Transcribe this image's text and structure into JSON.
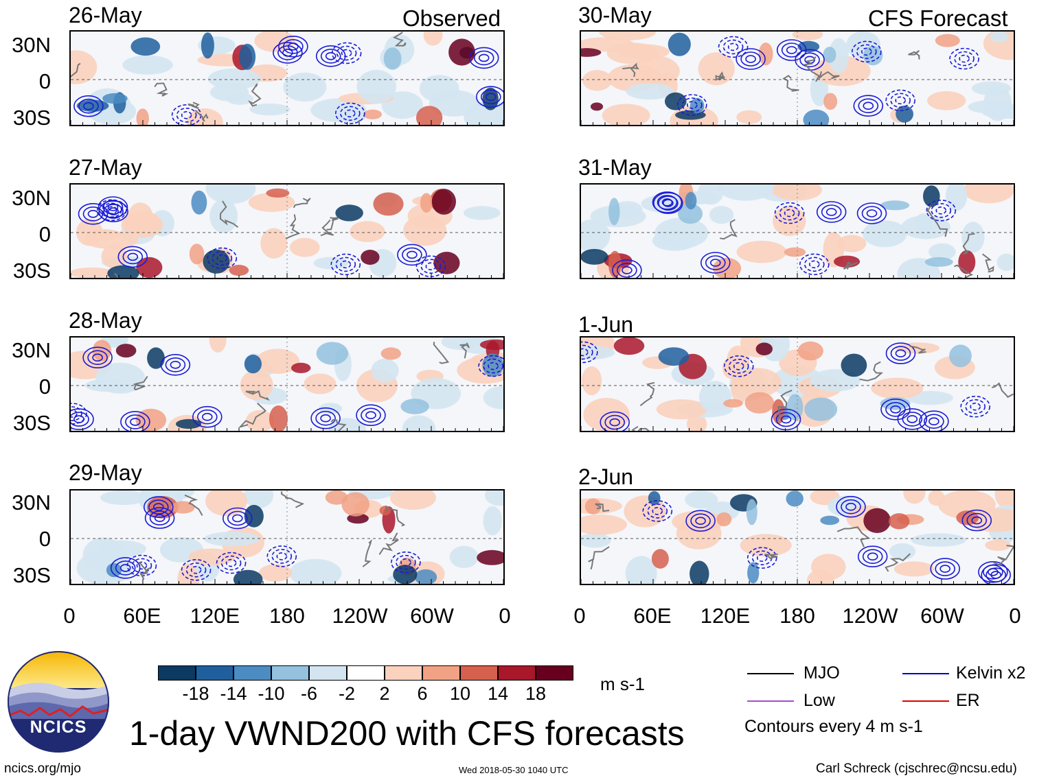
{
  "headers": {
    "left": "Observed",
    "right": "CFS Forecast"
  },
  "observed_dates": [
    "26-May",
    "27-May",
    "28-May",
    "29-May"
  ],
  "forecast_dates": [
    "30-May",
    "31-May",
    "1-Jun",
    "2-Jun"
  ],
  "lat_labels": [
    "30N",
    "0",
    "30S"
  ],
  "lon_labels": [
    "0",
    "60E",
    "120E",
    "180",
    "120W",
    "60W",
    "0"
  ],
  "colorbar": {
    "unit": "m s-1",
    "tick_labels": [
      "-18",
      "-14",
      "-10",
      "-6",
      "-2",
      "2",
      "6",
      "10",
      "14",
      "18"
    ],
    "colors": [
      "#0b3a63",
      "#1f5f9e",
      "#4b8cc2",
      "#93c1de",
      "#d4e5f1",
      "#ffffff",
      "#fbd2bd",
      "#f1a184",
      "#d6604e",
      "#a9172a",
      "#67001f"
    ]
  },
  "legend": {
    "items": [
      {
        "label": "MJO",
        "color": "#000000"
      },
      {
        "label": "Kelvin x2",
        "color": "#0000cc"
      },
      {
        "label": "Low",
        "color": "#a64ccc"
      },
      {
        "label": "ER",
        "color": "#dd0000"
      }
    ],
    "note": "Contours every 4 m s-1"
  },
  "logo": {
    "text": "NCICS"
  },
  "title": "1-day VWND200 with CFS forecasts",
  "footer": {
    "url": "ncics.org/mjo",
    "timestamp": "Wed 2018-05-30 1040 UTC",
    "author": "Carl Schreck (cjschrec@ncsu.edu)"
  }
}
